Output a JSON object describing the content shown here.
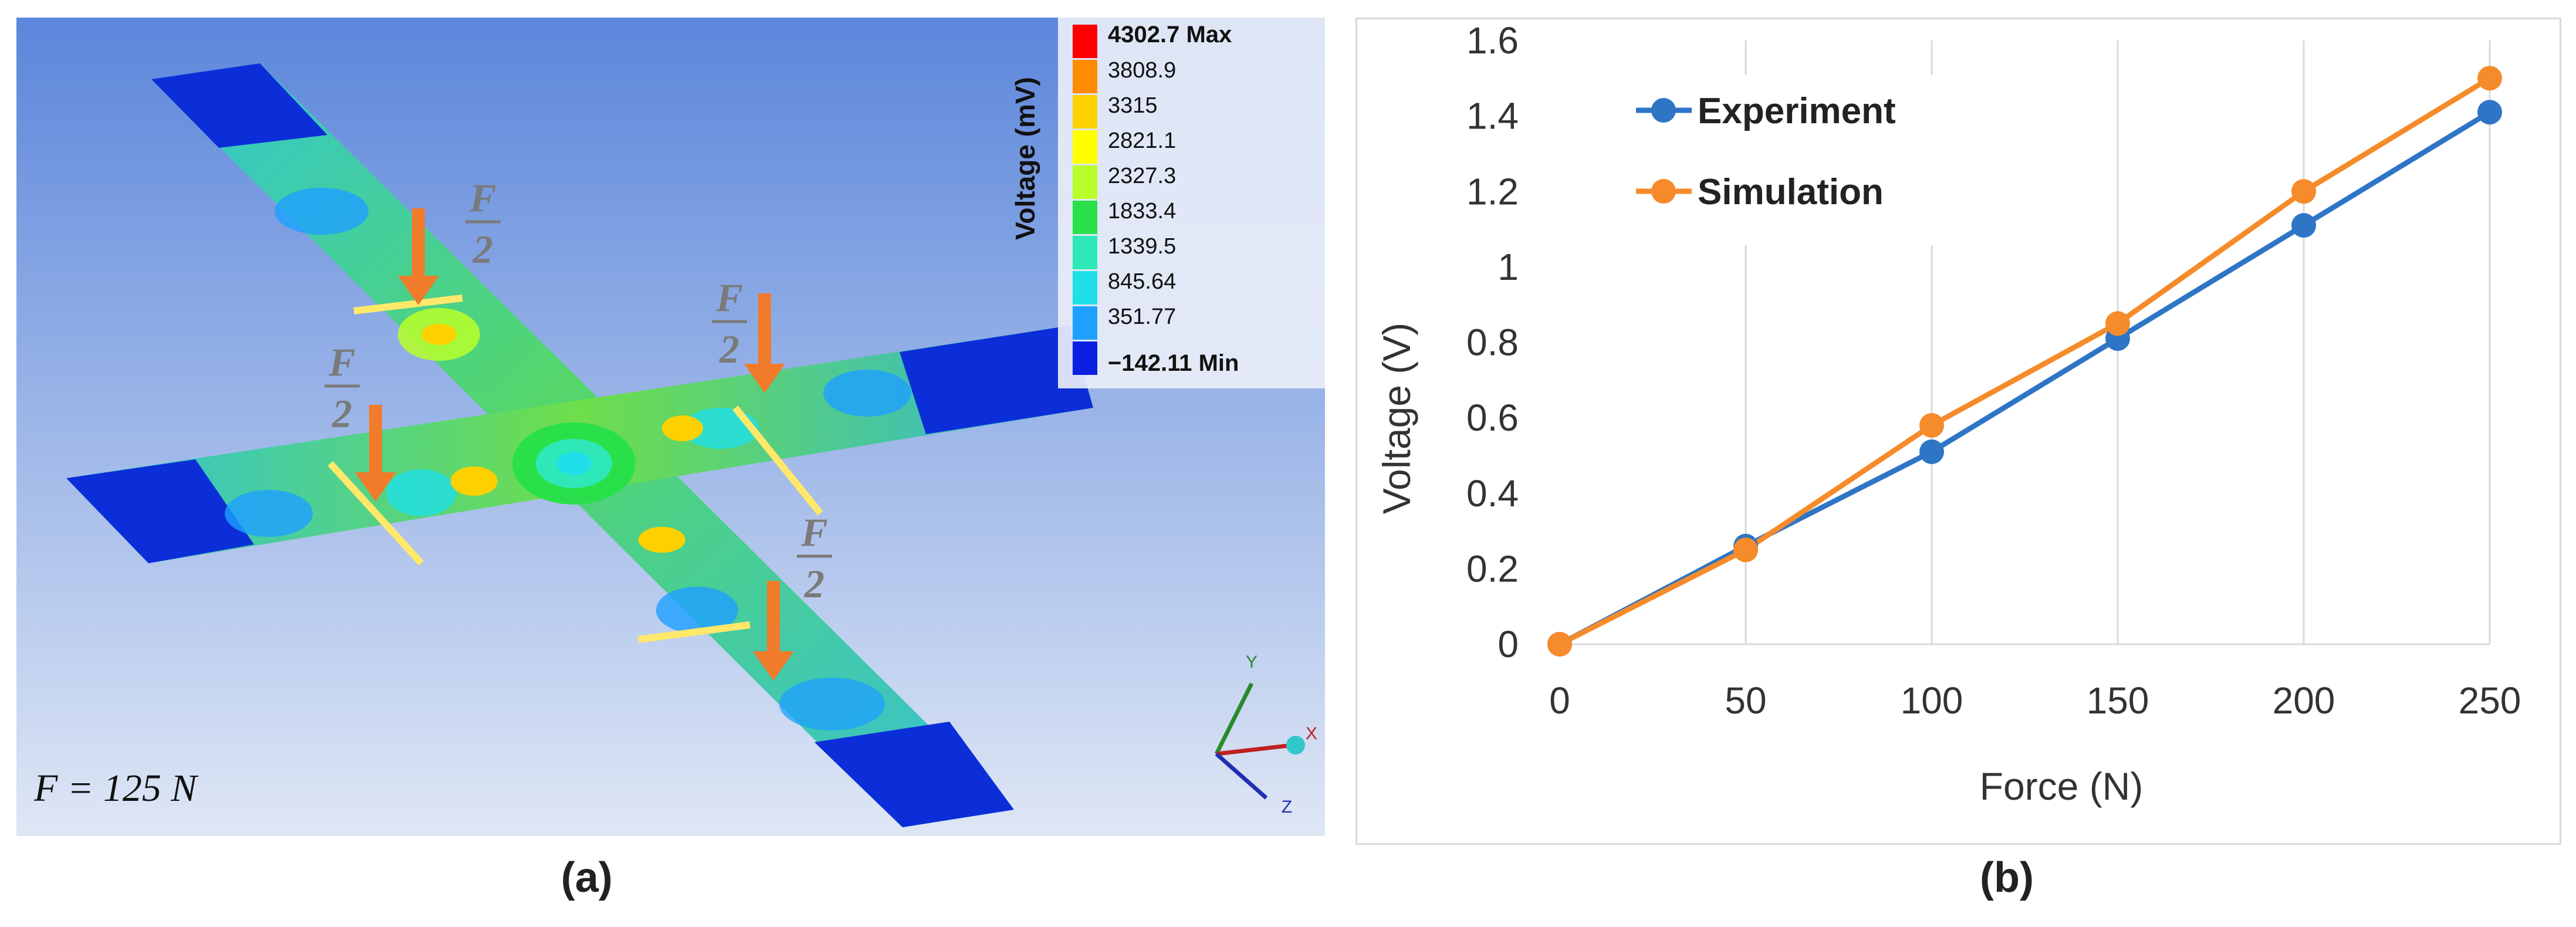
{
  "panel_a": {
    "caption": "(a)",
    "legend": {
      "title": "Voltage (mV)",
      "entries": [
        "4302.7 Max",
        "3808.9",
        "3315",
        "2821.1",
        "2327.3",
        "1833.4",
        "1339.5",
        "845.64",
        "351.77",
        "−142.11 Min"
      ],
      "colors": [
        "#ff0000",
        "#ff8c00",
        "#ffd000",
        "#ffff00",
        "#b8ff2a",
        "#29e04a",
        "#2ee8b8",
        "#1fe0e8",
        "#1ea0ff",
        "#0a1fe0"
      ]
    },
    "force_label": "F = 125 N",
    "load_symbol_num": "F",
    "load_symbol_den": "2",
    "axes": {
      "y": "Y",
      "x": "X",
      "z": "Z"
    },
    "colors": {
      "arrow": "#f07b2b",
      "background_top": "#5b86db",
      "background_bottom": "#dfe7f5"
    }
  },
  "chart_data": {
    "type": "line",
    "caption": "(b)",
    "xlabel": "Force (N)",
    "ylabel": "Voltage (V)",
    "x": [
      0,
      50,
      100,
      150,
      200,
      250
    ],
    "xticks": [
      "0",
      "50",
      "100",
      "150",
      "200",
      "250"
    ],
    "yticks": [
      "0",
      "0.2",
      "0.4",
      "0.6",
      "0.8",
      "1",
      "1.2",
      "1.4",
      "1.6"
    ],
    "xlim": [
      0,
      250
    ],
    "ylim": [
      0,
      1.6
    ],
    "grid": "vertical",
    "legend_position": "top-left",
    "series": [
      {
        "name": "Experiment",
        "color": "#2e75c6",
        "values": [
          0,
          0.26,
          0.51,
          0.81,
          1.11,
          1.41
        ]
      },
      {
        "name": "Simulation",
        "color": "#f58b2a",
        "values": [
          0,
          0.25,
          0.58,
          0.85,
          1.2,
          1.5
        ]
      }
    ]
  }
}
